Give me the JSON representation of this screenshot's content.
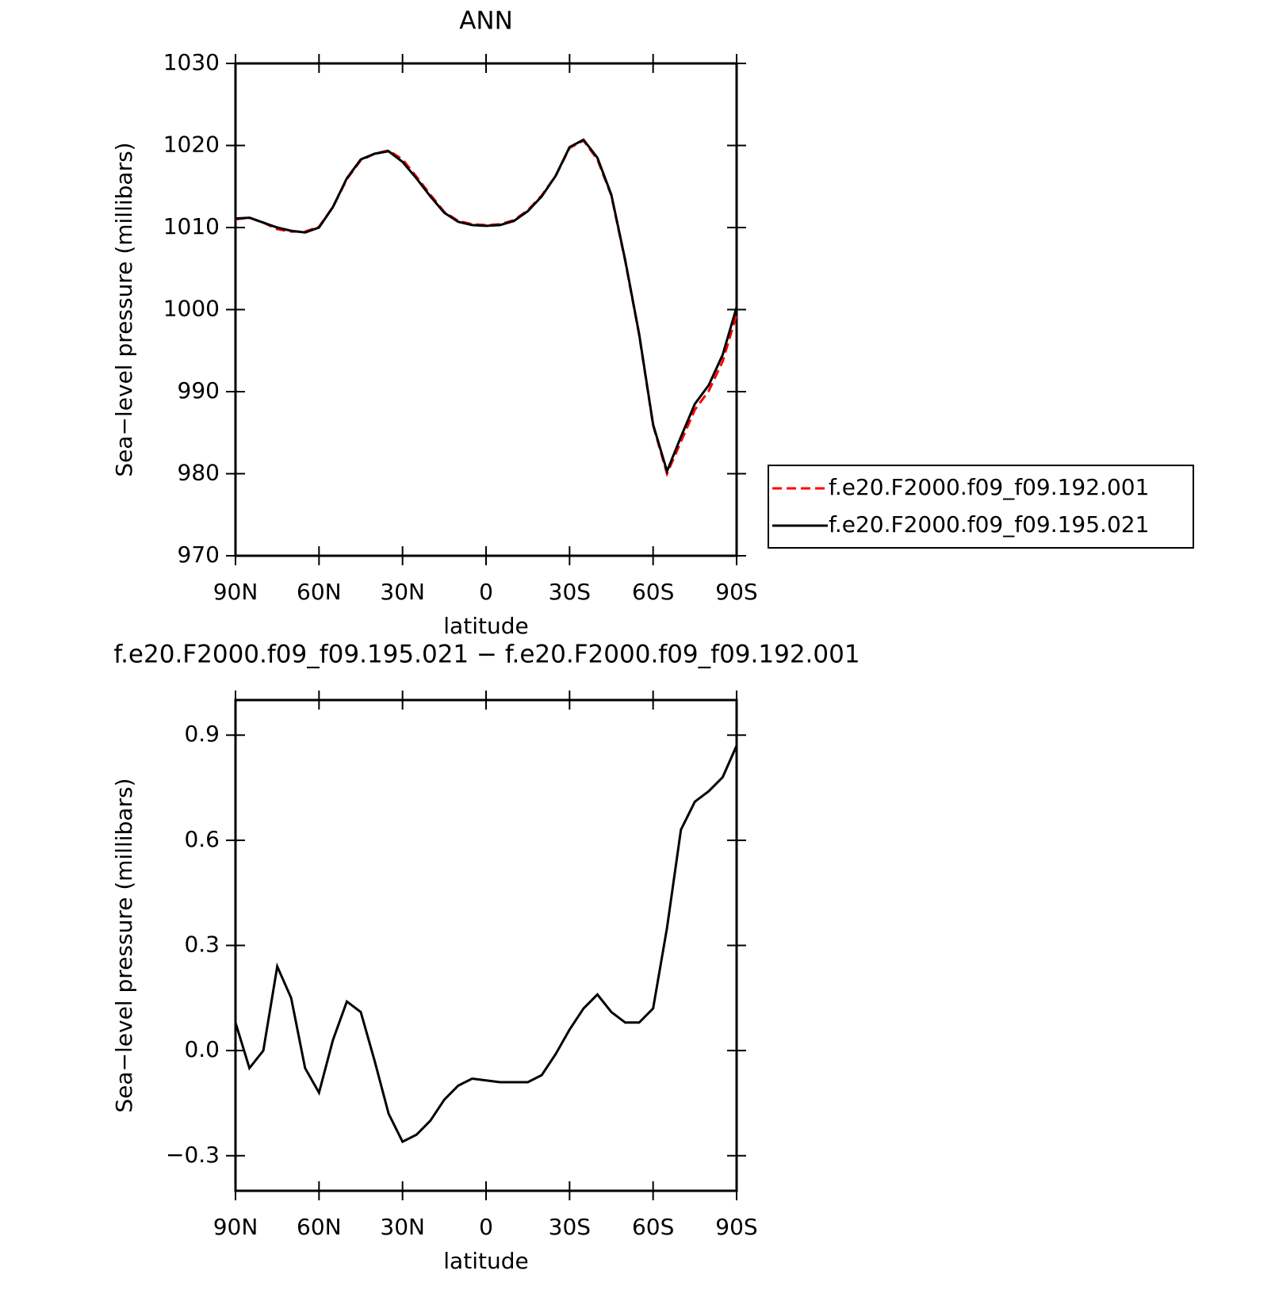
{
  "chart_data": [
    {
      "type": "line",
      "title": "ANN",
      "x_label": "latitude",
      "y_label": "Sea−level pressure (millibars)",
      "x": [
        90,
        85,
        80,
        75,
        70,
        65,
        60,
        55,
        50,
        45,
        40,
        35,
        30,
        25,
        20,
        15,
        10,
        5,
        0,
        -5,
        -10,
        -15,
        -20,
        -25,
        -30,
        -35,
        -40,
        -45,
        -50,
        -55,
        -60,
        -65,
        -70,
        -75,
        -80,
        -85,
        -90
      ],
      "xlim": [
        90,
        -90
      ],
      "xticks": [
        {
          "value": 90,
          "label": "90N"
        },
        {
          "value": 60,
          "label": "60N"
        },
        {
          "value": 30,
          "label": "30N"
        },
        0,
        {
          "value": -30,
          "label": "30S"
        },
        {
          "value": -60,
          "label": "60S"
        },
        {
          "value": -90,
          "label": "90S"
        }
      ],
      "ylim": [
        970,
        1030
      ],
      "yticks": [
        970,
        980,
        990,
        1000,
        1010,
        1020,
        1030
      ],
      "legend": "right",
      "series": [
        {
          "name": "f.e20.F2000.f09_f09.192.001",
          "color": "#ff0000",
          "line_style": "dashed",
          "values": [
            1011.0,
            1011.2,
            1010.6,
            1009.8,
            1009.5,
            1009.5,
            1010.1,
            1012.5,
            1015.9,
            1018.2,
            1019.0,
            1019.4,
            1018.3,
            1016.2,
            1014.0,
            1011.9,
            1010.8,
            1010.4,
            1010.3,
            1010.4,
            1010.9,
            1012.1,
            1013.9,
            1016.3,
            1019.7,
            1020.6,
            1018.3,
            1013.9,
            1005.9,
            996.9,
            985.9,
            980.0,
            983.9,
            987.8,
            990.1,
            993.7,
            999.4
          ]
        },
        {
          "name": "f.e20.F2000.f09_f09.195.021",
          "color": "#000000",
          "line_style": "solid",
          "values": [
            1011.1,
            1011.2,
            1010.6,
            1010.0,
            1009.6,
            1009.4,
            1010.0,
            1012.5,
            1016.0,
            1018.3,
            1019.0,
            1019.3,
            1018.0,
            1016.0,
            1013.8,
            1011.8,
            1010.7,
            1010.3,
            1010.2,
            1010.3,
            1010.8,
            1012.0,
            1013.8,
            1016.3,
            1019.8,
            1020.7,
            1018.5,
            1014.0,
            1006.0,
            997.0,
            986.0,
            980.3,
            984.5,
            988.5,
            990.8,
            994.5,
            1000.3
          ]
        }
      ]
    },
    {
      "type": "line",
      "title": "f.e20.F2000.f09_f09.195.021 − f.e20.F2000.f09_f09.192.001",
      "x_label": "latitude",
      "y_label": "Sea−level pressure (millibars)",
      "x": [
        90,
        85,
        80,
        75,
        70,
        65,
        60,
        55,
        50,
        45,
        40,
        35,
        30,
        25,
        20,
        15,
        10,
        5,
        0,
        -5,
        -10,
        -15,
        -20,
        -25,
        -30,
        -35,
        -40,
        -45,
        -50,
        -55,
        -60,
        -65,
        -70,
        -75,
        -80,
        -85,
        -90
      ],
      "xlim": [
        90,
        -90
      ],
      "xticks": [
        {
          "value": 90,
          "label": "90N"
        },
        {
          "value": 60,
          "label": "60N"
        },
        {
          "value": 30,
          "label": "30N"
        },
        0,
        {
          "value": -30,
          "label": "30S"
        },
        {
          "value": -60,
          "label": "60S"
        },
        {
          "value": -90,
          "label": "90S"
        }
      ],
      "ylim": [
        -0.4,
        1.0
      ],
      "yticks": [
        {
          "value": -0.3,
          "label": "−0.3"
        },
        {
          "value": 0,
          "label": "0.0"
        },
        0.3,
        0.6,
        0.9
      ],
      "series": [
        {
          "color": "#000000",
          "line_style": "solid",
          "values": [
            0.08,
            -0.05,
            0.0,
            0.24,
            0.15,
            -0.05,
            -0.12,
            0.03,
            0.14,
            0.11,
            -0.03,
            -0.18,
            -0.26,
            -0.24,
            -0.2,
            -0.14,
            -0.1,
            -0.08,
            -0.085,
            -0.09,
            -0.09,
            -0.09,
            -0.07,
            -0.01,
            0.06,
            0.12,
            0.16,
            0.11,
            0.08,
            0.08,
            0.12,
            0.35,
            0.63,
            0.71,
            0.74,
            0.78,
            0.87
          ]
        }
      ]
    }
  ]
}
